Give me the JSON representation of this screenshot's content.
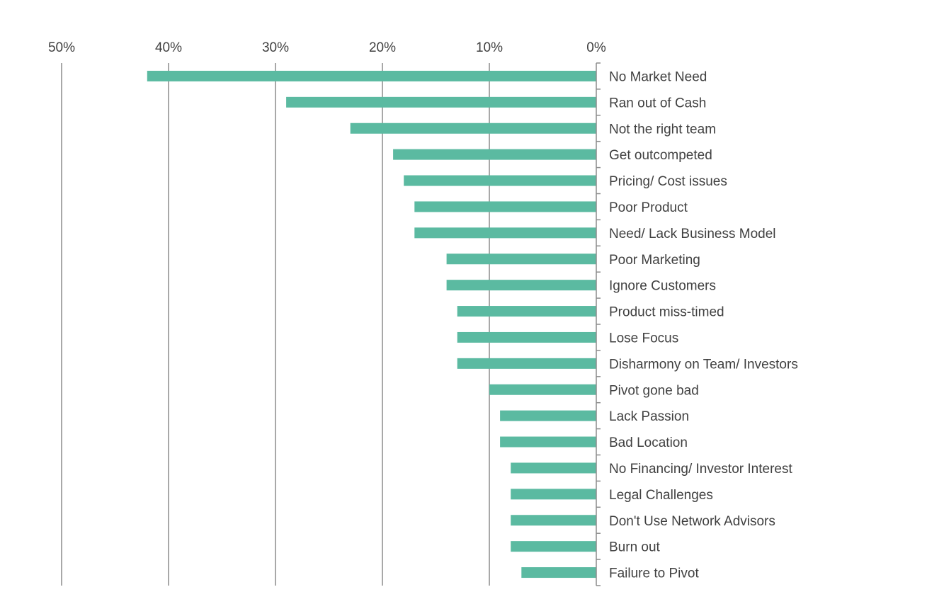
{
  "chart_data": {
    "type": "bar",
    "orientation": "horizontal",
    "x_direction": "reversed",
    "xlim": [
      0,
      50
    ],
    "x_ticks": [
      50,
      40,
      30,
      20,
      10,
      0
    ],
    "x_tick_labels": [
      "50%",
      "40%",
      "30%",
      "20%",
      "10%",
      "0%"
    ],
    "x_axis_position": "top",
    "grid": true,
    "legend": "none",
    "bar_color": "#5BBAA1",
    "categories": [
      "No Market Need",
      "Ran out of Cash",
      "Not the right team",
      "Get outcompeted",
      "Pricing/ Cost issues",
      "Poor Product",
      "Need/ Lack Business Model",
      "Poor Marketing",
      "Ignore Customers",
      "Product miss-timed",
      "Lose Focus",
      "Disharmony on Team/ Investors",
      "Pivot gone bad",
      "Lack Passion",
      "Bad Location",
      "No Financing/ Investor Interest",
      "Legal Challenges",
      "Don't Use Network Advisors",
      "Burn out",
      "Failure to Pivot"
    ],
    "values": [
      42,
      29,
      23,
      19,
      18,
      17,
      17,
      14,
      14,
      13,
      13,
      13,
      10,
      9,
      9,
      8,
      8,
      8,
      8,
      7
    ]
  }
}
